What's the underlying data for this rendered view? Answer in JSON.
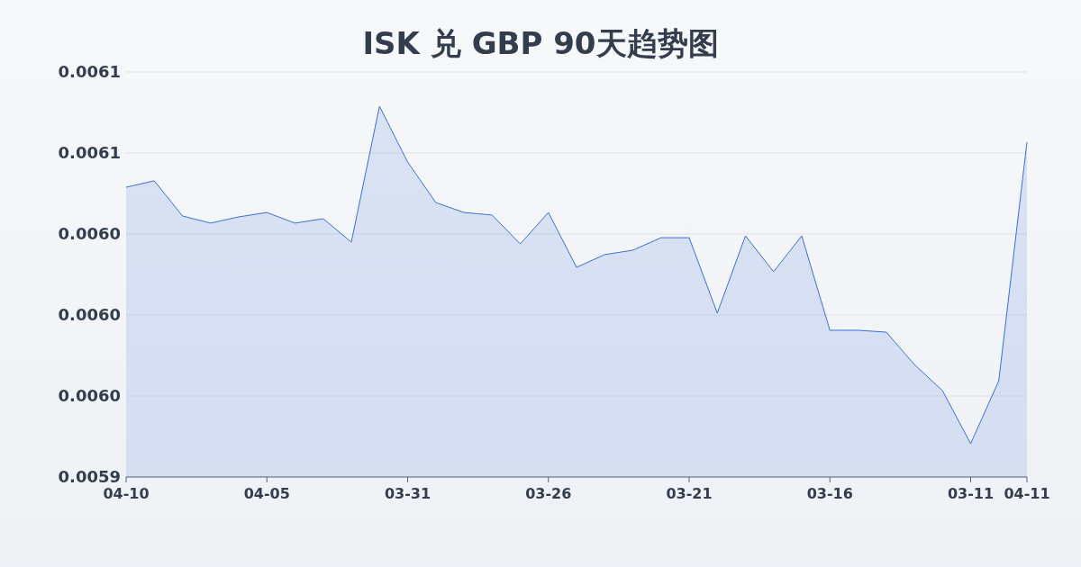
{
  "chart_data": {
    "type": "area",
    "title": "ISK 兑 GBP 90天趋势图",
    "categories": [
      "04-10",
      null,
      null,
      null,
      null,
      "04-05",
      null,
      null,
      null,
      null,
      "03-31",
      null,
      null,
      null,
      null,
      "03-26",
      null,
      null,
      null,
      null,
      "03-21",
      null,
      null,
      null,
      null,
      "03-16",
      null,
      null,
      null,
      null,
      "03-11",
      null,
      "04-11"
    ],
    "series": [
      {
        "color": "#3a6fd8",
        "values": [
          0.0060452,
          0.006048,
          0.0060328,
          0.0060297,
          0.0060324,
          0.0060343,
          0.0060297,
          0.0060316,
          0.0060215,
          0.0060802,
          0.0060561,
          0.0060386,
          0.0060343,
          0.0060332,
          0.0060207,
          0.0060343,
          0.0060106,
          0.0060161,
          0.006018,
          0.0060234,
          0.0060234,
          0.0059908,
          0.0060242,
          0.0060087,
          0.0060242,
          0.0059834,
          0.0059834,
          0.0059826,
          0.0059686,
          0.0059573,
          0.0059344,
          0.0059616,
          0.0060647
        ]
      }
    ],
    "ylim": [
      0.00592,
      0.006095
    ],
    "yticks": [
      {
        "value": 0.00592,
        "label": "0.0059"
      },
      {
        "value": 0.005955,
        "label": "0.0060"
      },
      {
        "value": 0.00599,
        "label": "0.0060"
      },
      {
        "value": 0.006025,
        "label": "0.0060"
      },
      {
        "value": 0.00606,
        "label": "0.0061"
      },
      {
        "value": 0.006095,
        "label": "0.0061"
      }
    ],
    "grid": "y"
  }
}
